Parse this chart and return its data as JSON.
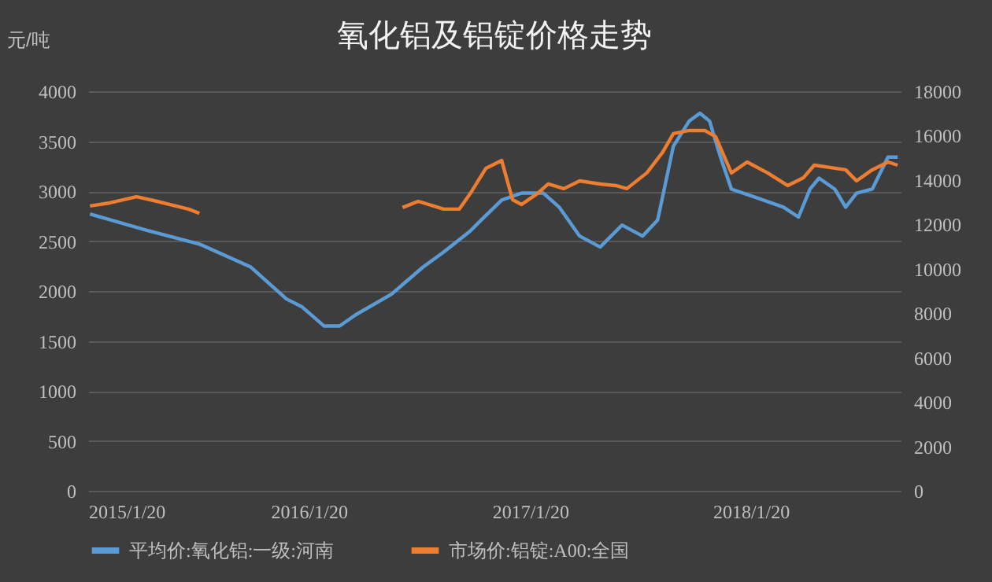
{
  "chart_data": {
    "type": "line",
    "title": "氧化铝及铝锭价格走势",
    "ylabel": "元/吨",
    "xlim": [
      "2015-01-20",
      "2018-09-25"
    ],
    "xticks": [
      {
        "value": "2015-01-20",
        "label": "2015/1/20"
      },
      {
        "value": "2016-01-20",
        "label": "2016/1/20"
      },
      {
        "value": "2017-01-20",
        "label": "2017/1/20"
      },
      {
        "value": "2018-01-20",
        "label": "2018/1/20"
      }
    ],
    "ylim": [
      0,
      4000
    ],
    "yticks": [
      0,
      500,
      1000,
      1500,
      2000,
      2500,
      3000,
      3500,
      4000
    ],
    "y2lim": [
      0,
      18000
    ],
    "y2ticks": [
      0,
      2000,
      4000,
      6000,
      8000,
      10000,
      12000,
      14000,
      16000,
      18000
    ],
    "grid": "y",
    "legend": "bottom",
    "line_style": "solid",
    "marker": "none",
    "series": [
      {
        "name": "平均价:氧化铝:一级:河南",
        "color": "#5b9bd5",
        "x": [
          "2015-01-23",
          "2015-04-26",
          "2015-07-23",
          "2015-10-16",
          "2015-12-14",
          "2016-01-09",
          "2016-02-14",
          "2016-03-11",
          "2016-04-06",
          "2016-06-05",
          "2016-07-27",
          "2016-08-30",
          "2016-10-13",
          "2016-10-31",
          "2016-12-04",
          "2017-01-06",
          "2017-02-11",
          "2017-03-09",
          "2017-04-12",
          "2017-05-16",
          "2017-06-21",
          "2017-07-25",
          "2017-08-19",
          "2017-09-14",
          "2017-10-10",
          "2017-10-28",
          "2017-11-13",
          "2017-12-01",
          "2017-12-19",
          "2018-01-22",
          "2018-03-15",
          "2018-04-09",
          "2018-04-28",
          "2018-05-13",
          "2018-06-08",
          "2018-06-26",
          "2018-07-14",
          "2018-08-09",
          "2018-09-04",
          "2018-09-20"
        ],
        "values": [
          2770,
          2610,
          2470,
          2240,
          1920,
          1840,
          1650,
          1650,
          1760,
          1970,
          2240,
          2390,
          2600,
          2710,
          2910,
          2980,
          2980,
          2840,
          2550,
          2440,
          2660,
          2550,
          2710,
          3450,
          3700,
          3780,
          3700,
          3340,
          3020,
          2950,
          2840,
          2740,
          3020,
          3130,
          3020,
          2840,
          2980,
          3020,
          3340,
          3340
        ]
      },
      {
        "name": "市场价:铝锭:A00:全国",
        "color": "#ed7d31",
        "axis": "y2",
        "x": [
          "2015-01-23",
          "2015-02-25",
          "2015-04-10",
          "2015-05-14",
          "2015-07-05",
          "2015-07-23",
          "2016-01-20",
          "2016-06-23",
          "2016-07-19",
          "2016-08-30",
          "2016-09-25",
          "2016-10-13",
          "2016-11-08",
          "2016-12-04",
          "2016-12-22",
          "2017-01-06",
          "2017-02-01",
          "2017-02-19",
          "2017-03-17",
          "2017-04-12",
          "2017-05-16",
          "2017-06-11",
          "2017-06-29",
          "2017-08-01",
          "2017-08-27",
          "2017-09-14",
          "2017-10-10",
          "2017-11-05",
          "2017-11-23",
          "2017-12-19",
          "2018-01-14",
          "2018-02-17",
          "2018-03-22",
          "2018-04-17",
          "2018-05-05",
          "2018-06-08",
          "2018-06-26",
          "2018-07-14",
          "2018-08-09",
          "2018-09-04",
          "2018-09-20"
        ],
        "values": [
          12830,
          12970,
          13250,
          13040,
          12690,
          12500,
          null,
          12760,
          13040,
          12690,
          12690,
          13390,
          14530,
          14880,
          13110,
          12900,
          13390,
          13820,
          13610,
          13960,
          13820,
          13750,
          13610,
          14320,
          15240,
          16090,
          16230,
          16230,
          15950,
          14320,
          14810,
          14320,
          13750,
          14100,
          14670,
          14530,
          14460,
          13960,
          14460,
          14810,
          14670
        ]
      }
    ]
  }
}
